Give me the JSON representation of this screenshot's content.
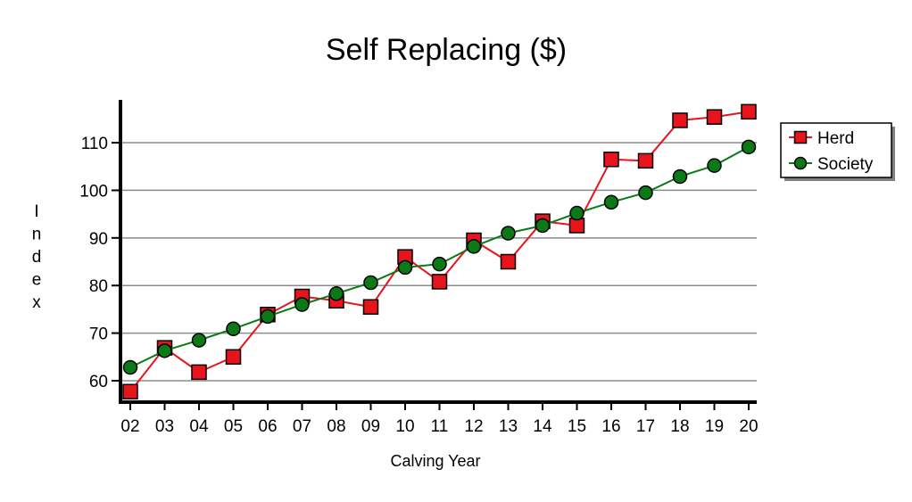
{
  "chart_data": {
    "type": "line",
    "title": "Self Replacing ($)",
    "xlabel": "Calving Year",
    "ylabel": "Index",
    "categories": [
      "02",
      "03",
      "04",
      "05",
      "06",
      "07",
      "08",
      "09",
      "10",
      "11",
      "12",
      "13",
      "14",
      "15",
      "16",
      "17",
      "18",
      "19",
      "20"
    ],
    "ylim": [
      55.5,
      119
    ],
    "yticks": [
      60,
      70,
      80,
      90,
      100,
      110
    ],
    "grid": true,
    "legend": "top-right",
    "series": [
      {
        "name": "Herd",
        "color": "#e8141b",
        "marker": "square",
        "values": [
          57.7,
          66.9,
          61.8,
          65.0,
          73.9,
          77.7,
          76.8,
          75.5,
          86.0,
          80.8,
          89.5,
          85.0,
          93.5,
          92.6,
          106.5,
          106.2,
          114.7,
          115.4,
          116.5
        ]
      },
      {
        "name": "Society",
        "color": "#0b7a16",
        "marker": "circle",
        "values": [
          62.8,
          66.3,
          68.5,
          70.9,
          73.5,
          76.0,
          78.3,
          80.6,
          83.8,
          84.5,
          88.2,
          91.0,
          92.6,
          95.2,
          97.5,
          99.5,
          102.9,
          105.2,
          109.1
        ]
      }
    ]
  }
}
